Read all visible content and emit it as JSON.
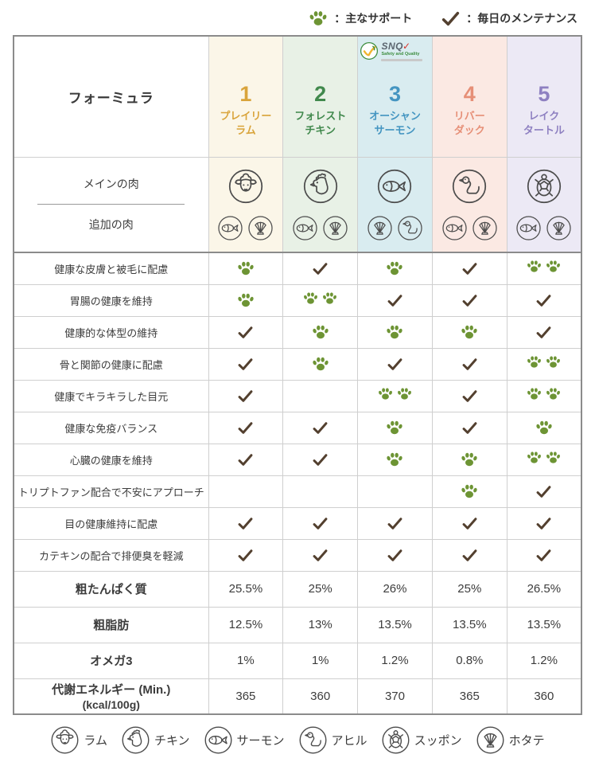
{
  "legend_top": {
    "paw_label": "：主なサポート",
    "check_label": "：毎日のメンテナンス"
  },
  "snq": {
    "name": "SNQ",
    "check": "✓",
    "subtitle": "Safety and Quality"
  },
  "table": {
    "header_label": "フォーミュラ",
    "meat": {
      "main_label": "メインの肉",
      "add_label": "追加の肉"
    },
    "formulas": [
      {
        "num": "1",
        "name1": "プレイリー",
        "name2": "ラム",
        "color": "#d9a43b",
        "bg": "#fbf6e8",
        "main": "lamb",
        "additional": [
          "salmon",
          "scallop"
        ],
        "snq": false
      },
      {
        "num": "2",
        "name1": "フォレスト",
        "name2": "チキン",
        "color": "#41894d",
        "bg": "#e8f1e6",
        "main": "chicken",
        "additional": [
          "salmon",
          "scallop"
        ],
        "snq": false
      },
      {
        "num": "3",
        "name1": "オーシャン",
        "name2": "サーモン",
        "color": "#4495c1",
        "bg": "#d9ecf0",
        "main": "salmon",
        "additional": [
          "scallop",
          "duck"
        ],
        "snq": true
      },
      {
        "num": "4",
        "name1": "リバー",
        "name2": "ダック",
        "color": "#e68f77",
        "bg": "#fbe9e3",
        "main": "duck",
        "additional": [
          "salmon",
          "scallop"
        ],
        "snq": false
      },
      {
        "num": "5",
        "name1": "レイク",
        "name2": "タートル",
        "color": "#8e80c1",
        "bg": "#ece9f5",
        "main": "turtle",
        "additional": [
          "salmon",
          "scallop"
        ],
        "snq": false
      }
    ],
    "feature_rows": [
      {
        "label": "健康な皮膚と被毛に配慮",
        "marks": [
          "paw",
          "check",
          "paw",
          "check",
          "paw2"
        ]
      },
      {
        "label": "胃腸の健康を維持",
        "marks": [
          "paw",
          "paw2",
          "check",
          "check",
          "check"
        ]
      },
      {
        "label": "健康的な体型の維持",
        "marks": [
          "check",
          "paw",
          "paw",
          "paw",
          "check"
        ]
      },
      {
        "label": "骨と関節の健康に配慮",
        "marks": [
          "check",
          "paw",
          "check",
          "check",
          "paw2"
        ]
      },
      {
        "label": "健康でキラキラした目元",
        "marks": [
          "check",
          "",
          "paw2",
          "check",
          "paw2"
        ]
      },
      {
        "label": "健康な免疫バランス",
        "marks": [
          "check",
          "check",
          "paw",
          "check",
          "paw"
        ]
      },
      {
        "label": "心臓の健康を維持",
        "marks": [
          "check",
          "check",
          "paw",
          "paw",
          "paw2"
        ]
      },
      {
        "label": "トリプトファン配合で不安にアプローチ",
        "marks": [
          "",
          "",
          "",
          "paw",
          "check"
        ]
      },
      {
        "label": "目の健康維持に配慮",
        "marks": [
          "check",
          "check",
          "check",
          "check",
          "check"
        ]
      },
      {
        "label": "カテキンの配合で排便臭を軽減",
        "marks": [
          "check",
          "check",
          "check",
          "check",
          "check"
        ]
      }
    ],
    "nutrition_rows": [
      {
        "label": "粗たんぱく質",
        "label2": "",
        "values": [
          "25.5%",
          "25%",
          "26%",
          "25%",
          "26.5%"
        ]
      },
      {
        "label": "粗脂肪",
        "label2": "",
        "values": [
          "12.5%",
          "13%",
          "13.5%",
          "13.5%",
          "13.5%"
        ]
      },
      {
        "label": "オメガ3",
        "label2": "",
        "values": [
          "1%",
          "1%",
          "1.2%",
          "0.8%",
          "1.2%"
        ]
      },
      {
        "label": "代謝エネルギー (Min.)",
        "label2": "(kcal/100g)",
        "values": [
          "365",
          "360",
          "370",
          "365",
          "360"
        ]
      }
    ]
  },
  "legend_bottom": [
    {
      "icon": "lamb",
      "label": "ラム"
    },
    {
      "icon": "chicken",
      "label": "チキン"
    },
    {
      "icon": "salmon",
      "label": "サーモン"
    },
    {
      "icon": "duck",
      "label": "アヒル"
    },
    {
      "icon": "turtle",
      "label": "スッポン"
    },
    {
      "icon": "scallop",
      "label": "ホタテ"
    }
  ],
  "chart_data": {
    "type": "table",
    "title": "フォーミュラ",
    "legend": {
      "paw": "主なサポート",
      "check": "毎日のメンテナンス"
    },
    "columns": [
      "1 プレイリーラム",
      "2 フォレストチキン",
      "3 オーシャンサーモン",
      "4 リバーダック",
      "5 レイクタートル"
    ],
    "rows": [
      {
        "label": "メインの肉",
        "values": [
          "ラム",
          "チキン",
          "サーモン",
          "アヒル",
          "スッポン"
        ]
      },
      {
        "label": "追加の肉",
        "values": [
          "サーモン・ホタテ",
          "サーモン・ホタテ",
          "ホタテ・アヒル",
          "サーモン・ホタテ",
          "サーモン・ホタテ"
        ]
      },
      {
        "label": "健康な皮膚と被毛に配慮",
        "values": [
          "paw",
          "check",
          "paw",
          "check",
          "paw×2"
        ]
      },
      {
        "label": "胃腸の健康を維持",
        "values": [
          "paw",
          "paw×2",
          "check",
          "check",
          "check"
        ]
      },
      {
        "label": "健康的な体型の維持",
        "values": [
          "check",
          "paw",
          "paw",
          "paw",
          "check"
        ]
      },
      {
        "label": "骨と関節の健康に配慮",
        "values": [
          "check",
          "paw",
          "check",
          "check",
          "paw×2"
        ]
      },
      {
        "label": "健康でキラキラした目元",
        "values": [
          "check",
          "",
          "paw×2",
          "check",
          "paw×2"
        ]
      },
      {
        "label": "健康な免疫バランス",
        "values": [
          "check",
          "check",
          "paw",
          "check",
          "paw"
        ]
      },
      {
        "label": "心臓の健康を維持",
        "values": [
          "check",
          "check",
          "paw",
          "paw",
          "paw×2"
        ]
      },
      {
        "label": "トリプトファン配合で不安にアプローチ",
        "values": [
          "",
          "",
          "",
          "paw",
          "check"
        ]
      },
      {
        "label": "目の健康維持に配慮",
        "values": [
          "check",
          "check",
          "check",
          "check",
          "check"
        ]
      },
      {
        "label": "カテキンの配合で排便臭を軽減",
        "values": [
          "check",
          "check",
          "check",
          "check",
          "check"
        ]
      },
      {
        "label": "粗たんぱく質",
        "values": [
          "25.5%",
          "25%",
          "26%",
          "25%",
          "26.5%"
        ]
      },
      {
        "label": "粗脂肪",
        "values": [
          "12.5%",
          "13%",
          "13.5%",
          "13.5%",
          "13.5%"
        ]
      },
      {
        "label": "オメガ3",
        "values": [
          "1%",
          "1%",
          "1.2%",
          "0.8%",
          "1.2%"
        ]
      },
      {
        "label": "代謝エネルギー (Min.) (kcal/100g)",
        "values": [
          "365",
          "360",
          "370",
          "365",
          "360"
        ]
      }
    ]
  }
}
